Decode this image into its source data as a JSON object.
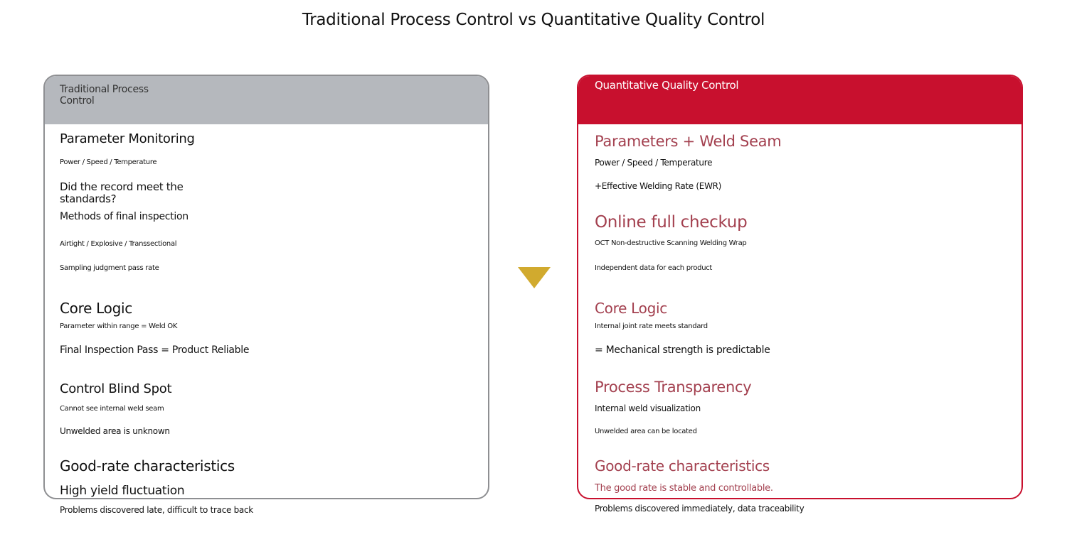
{
  "title": "Traditional Process Control vs Quantitative Quality Control",
  "left": {
    "header": "Traditional Process Control",
    "items": [
      "Parameter Monitoring",
      "Power / Speed / Temperature",
      "Did the record meet the standards?",
      "Methods of final inspection",
      "Airtight / Explosive / Transsectional",
      "Sampling judgment pass rate",
      "Core Logic",
      "Parameter within range = Weld OK",
      "Final Inspection Pass = Product Reliable",
      "Control Blind Spot",
      "Cannot see internal weld seam",
      "Unwelded area is unknown",
      "Good-rate characteristics",
      "High yield fluctuation",
      "Problems discovered late, difficult to trace back"
    ]
  },
  "right": {
    "header": "Quantitative Quality Control",
    "items": [
      "Parameters + Weld Seam",
      "Power / Speed / Temperature",
      "+Effective Welding Rate (EWR)",
      "Online full checkup",
      "OCT Non-destructive Scanning Welding Wrap",
      "Independent data for each product",
      "Core Logic",
      "Internal joint rate meets standard",
      "= Mechanical strength is predictable",
      "Process Transparency",
      "Internal weld visualization",
      "Unwelded area can be located",
      "Good-rate characteristics",
      "The good rate is stable and controllable.",
      "Problems discovered immediately, data traceability"
    ]
  }
}
